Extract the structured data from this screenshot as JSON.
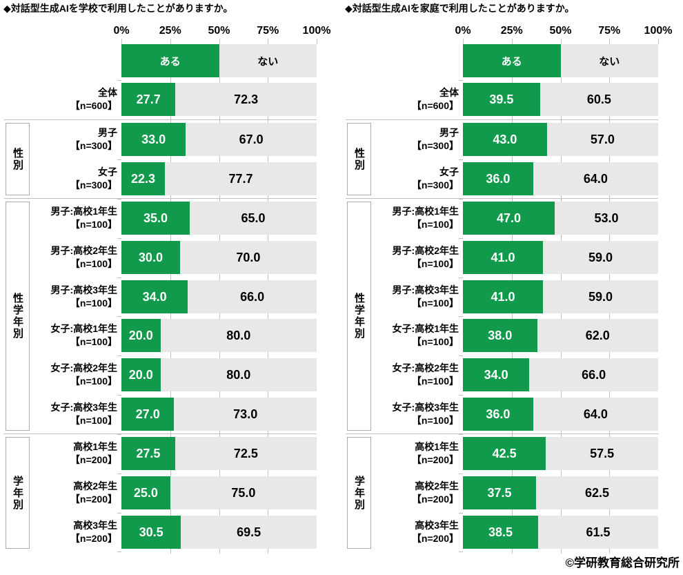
{
  "colors": {
    "yes": "#119A4B",
    "no": "#E8E8E8",
    "grid": "#BFBFBF",
    "box_border": "#ABABAB",
    "text": "#000000",
    "yes_text": "#FFFFFF"
  },
  "footer": {
    "copyright": "©学研教育総合研究所"
  },
  "chart_data": [
    {
      "type": "bar",
      "stacked": true,
      "orientation": "horizontal",
      "title": "◆対話型生成AIを学校で利用したことがありますか。",
      "legend": {
        "yes": "ある",
        "no": "ない"
      },
      "x_ticks": [
        "0%",
        "25%",
        "50%",
        "75%",
        "100%"
      ],
      "xlim": [
        0,
        100
      ],
      "groups": [
        {
          "label": "性別",
          "from": 1,
          "to": 2
        },
        {
          "label": "性学年別",
          "from": 3,
          "to": 8
        },
        {
          "label": "学年別",
          "from": 9,
          "to": 11
        }
      ],
      "rows": [
        {
          "label": "全体",
          "n": "【n=600】",
          "yes": 27.7,
          "no": 72.3
        },
        {
          "label": "男子",
          "n": "【n=300】",
          "yes": 33.0,
          "no": 67.0
        },
        {
          "label": "女子",
          "n": "【n=300】",
          "yes": 22.3,
          "no": 77.7
        },
        {
          "label": "男子:高校1年生",
          "n": "【n=100】",
          "yes": 35.0,
          "no": 65.0
        },
        {
          "label": "男子:高校2年生",
          "n": "【n=100】",
          "yes": 30.0,
          "no": 70.0
        },
        {
          "label": "男子:高校3年生",
          "n": "【n=100】",
          "yes": 34.0,
          "no": 66.0
        },
        {
          "label": "女子:高校1年生",
          "n": "【n=100】",
          "yes": 20.0,
          "no": 80.0
        },
        {
          "label": "女子:高校2年生",
          "n": "【n=100】",
          "yes": 20.0,
          "no": 80.0
        },
        {
          "label": "女子:高校3年生",
          "n": "【n=100】",
          "yes": 27.0,
          "no": 73.0
        },
        {
          "label": "高校1年生",
          "n": "【n=200】",
          "yes": 27.5,
          "no": 72.5
        },
        {
          "label": "高校2年生",
          "n": "【n=200】",
          "yes": 25.0,
          "no": 75.0
        },
        {
          "label": "高校3年生",
          "n": "【n=200】",
          "yes": 30.5,
          "no": 69.5
        }
      ]
    },
    {
      "type": "bar",
      "stacked": true,
      "orientation": "horizontal",
      "title": "◆対話型生成AIを家庭で利用したことがありますか。",
      "legend": {
        "yes": "ある",
        "no": "ない"
      },
      "x_ticks": [
        "0%",
        "25%",
        "50%",
        "75%",
        "100%"
      ],
      "xlim": [
        0,
        100
      ],
      "groups": [
        {
          "label": "性別",
          "from": 1,
          "to": 2
        },
        {
          "label": "性学年別",
          "from": 3,
          "to": 8
        },
        {
          "label": "学年別",
          "from": 9,
          "to": 11
        }
      ],
      "rows": [
        {
          "label": "全体",
          "n": "【n=600】",
          "yes": 39.5,
          "no": 60.5
        },
        {
          "label": "男子",
          "n": "【n=300】",
          "yes": 43.0,
          "no": 57.0
        },
        {
          "label": "女子",
          "n": "【n=300】",
          "yes": 36.0,
          "no": 64.0
        },
        {
          "label": "男子:高校1年生",
          "n": "【n=100】",
          "yes": 47.0,
          "no": 53.0
        },
        {
          "label": "男子:高校2年生",
          "n": "【n=100】",
          "yes": 41.0,
          "no": 59.0
        },
        {
          "label": "男子:高校3年生",
          "n": "【n=100】",
          "yes": 41.0,
          "no": 59.0
        },
        {
          "label": "女子:高校1年生",
          "n": "【n=100】",
          "yes": 38.0,
          "no": 62.0
        },
        {
          "label": "女子:高校2年生",
          "n": "【n=100】",
          "yes": 34.0,
          "no": 66.0
        },
        {
          "label": "女子:高校3年生",
          "n": "【n=100】",
          "yes": 36.0,
          "no": 64.0
        },
        {
          "label": "高校1年生",
          "n": "【n=200】",
          "yes": 42.5,
          "no": 57.5
        },
        {
          "label": "高校2年生",
          "n": "【n=200】",
          "yes": 37.5,
          "no": 62.5
        },
        {
          "label": "高校3年生",
          "n": "【n=200】",
          "yes": 38.5,
          "no": 61.5
        }
      ]
    }
  ]
}
